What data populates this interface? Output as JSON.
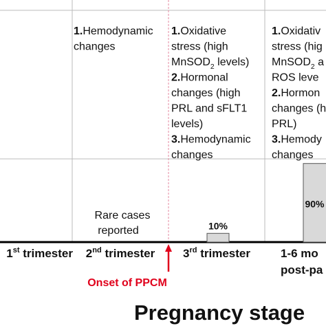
{
  "columns": [
    {
      "lines": []
    },
    {
      "lines": [
        [
          {
            "text": "1.",
            "style": "bold"
          },
          {
            "text": "Hemodynamic"
          }
        ],
        [
          {
            "text": "changes"
          }
        ]
      ]
    },
    {
      "lines": [
        [
          {
            "text": "1.",
            "style": "bold"
          },
          {
            "text": "Oxidative"
          }
        ],
        [
          {
            "text": "stress (high"
          }
        ],
        [
          {
            "text": "MnSOD"
          },
          {
            "text": "2",
            "style": "sub"
          },
          {
            "text": " levels)"
          }
        ],
        [
          {
            "text": "2.",
            "style": "bold"
          },
          {
            "text": "Hormonal"
          }
        ],
        [
          {
            "text": "changes (high"
          }
        ],
        [
          {
            "text": "PRL and sFLT1"
          }
        ],
        [
          {
            "text": "levels)"
          }
        ],
        [
          {
            "text": "3.",
            "style": "bold"
          },
          {
            "text": "Hemodynamic"
          }
        ],
        [
          {
            "text": "changes"
          }
        ]
      ]
    },
    {
      "lines": [
        [
          {
            "text": "1.",
            "style": "bold"
          },
          {
            "text": "Oxidativ"
          }
        ],
        [
          {
            "text": "stress (hig"
          }
        ],
        [
          {
            "text": "MnSOD"
          },
          {
            "text": "2",
            "style": "sub"
          },
          {
            "text": " a"
          }
        ],
        [
          {
            "text": "ROS leve"
          }
        ],
        [
          {
            "text": "2.",
            "style": "bold"
          },
          {
            "text": "Hormon"
          }
        ],
        [
          {
            "text": "changes (h"
          }
        ],
        [
          {
            "text": "PRL)"
          }
        ],
        [
          {
            "text": "3.",
            "style": "bold"
          },
          {
            "text": "Hemody"
          }
        ],
        [
          {
            "text": "changes"
          }
        ]
      ]
    }
  ],
  "note": [
    "Rare cases",
    "reported"
  ],
  "bars": [
    {
      "value": 10,
      "label": "10%"
    },
    {
      "value": 90,
      "label": "90%"
    }
  ],
  "stages": [
    [
      {
        "text": "1"
      },
      {
        "text": "st",
        "style": "sup"
      },
      {
        "text": " trimester"
      }
    ],
    [
      {
        "text": "2"
      },
      {
        "text": "nd",
        "style": "sup"
      },
      {
        "text": " trimester"
      }
    ],
    [
      {
        "text": "3"
      },
      {
        "text": "rd",
        "style": "sup"
      },
      {
        "text": " trimester"
      }
    ],
    [
      {
        "text": "1-6 mo"
      }
    ]
  ],
  "stage_extra": "post-pa",
  "onset": "Onset of PPCM",
  "xlabel": "Pregnancy stage"
}
